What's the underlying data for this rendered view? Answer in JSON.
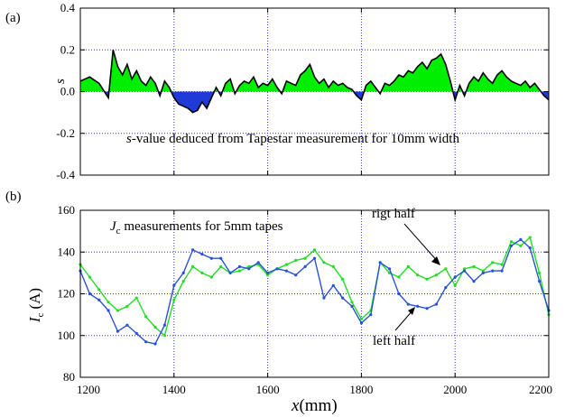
{
  "panel_labels": {
    "a": "(a)",
    "b": "(b)"
  },
  "x_ticks": [
    1200,
    1400,
    1600,
    1800,
    2000,
    2200
  ],
  "x_label": {
    "italic": "x",
    "unit": "(mm)"
  },
  "colors": {
    "axes": "#000000",
    "grid": "#3333cc",
    "pos_fill": "#00ee00",
    "neg_fill": "#1f3ad6",
    "right_half": "#22dd22",
    "left_half": "#2a52d8"
  },
  "chart_data": [
    {
      "type": "area",
      "panel": "(a)",
      "ylabel": "s",
      "ylim": [
        -0.4,
        0.4
      ],
      "xlim": [
        1200,
        2200
      ],
      "y_ticks": [
        "0.4",
        "0.2",
        "0.0",
        "-0.2",
        "-0.4"
      ],
      "grid": true,
      "annotation": {
        "italic": "s",
        "rest": "-value deduced from Tapestar measurement for 10mm width"
      },
      "x": [
        1200,
        1220,
        1240,
        1260,
        1270,
        1280,
        1290,
        1300,
        1310,
        1320,
        1330,
        1340,
        1350,
        1360,
        1370,
        1380,
        1390,
        1400,
        1410,
        1420,
        1430,
        1440,
        1450,
        1460,
        1470,
        1480,
        1490,
        1500,
        1510,
        1520,
        1530,
        1540,
        1550,
        1560,
        1570,
        1580,
        1590,
        1600,
        1610,
        1620,
        1630,
        1640,
        1650,
        1660,
        1670,
        1680,
        1690,
        1700,
        1710,
        1720,
        1730,
        1740,
        1750,
        1760,
        1770,
        1780,
        1790,
        1800,
        1810,
        1820,
        1830,
        1840,
        1850,
        1860,
        1870,
        1880,
        1890,
        1900,
        1910,
        1920,
        1930,
        1940,
        1950,
        1960,
        1970,
        1980,
        1990,
        2000,
        2010,
        2020,
        2030,
        2040,
        2050,
        2060,
        2070,
        2080,
        2090,
        2100,
        2110,
        2120,
        2130,
        2140,
        2150,
        2160,
        2170,
        2180,
        2190,
        2200
      ],
      "values": [
        0.05,
        0.07,
        0.04,
        -0.03,
        0.2,
        0.12,
        0.08,
        0.13,
        0.06,
        0.1,
        0.05,
        0.03,
        0.07,
        0.04,
        -0.02,
        0.05,
        0.02,
        -0.03,
        -0.06,
        -0.07,
        -0.08,
        -0.1,
        -0.09,
        -0.05,
        -0.08,
        -0.03,
        0.02,
        -0.02,
        0.04,
        0.06,
        -0.01,
        0.03,
        0.05,
        0.04,
        0.07,
        0.02,
        0.04,
        0.03,
        0.06,
        0.02,
        -0.01,
        0.05,
        0.04,
        0.03,
        0.08,
        0.1,
        0.13,
        0.07,
        0.04,
        0.06,
        0.02,
        0.05,
        0.03,
        0.04,
        0.02,
        0.01,
        -0.02,
        -0.04,
        0.03,
        0.05,
        0.02,
        -0.01,
        0.04,
        0.03,
        0.05,
        0.08,
        0.07,
        0.1,
        0.09,
        0.12,
        0.14,
        0.11,
        0.15,
        0.16,
        0.18,
        0.13,
        0.05,
        -0.04,
        0.03,
        -0.02,
        0.04,
        0.07,
        0.05,
        0.09,
        0.06,
        0.04,
        0.08,
        0.1,
        0.07,
        0.05,
        0.04,
        0.03,
        0.05,
        0.02,
        0.04,
        0.01,
        -0.02,
        -0.04
      ]
    },
    {
      "type": "line",
      "panel": "(b)",
      "ylabel": {
        "italic": "I",
        "sub": "c",
        "unit": "(A)"
      },
      "ylim": [
        80,
        160
      ],
      "xlim": [
        1200,
        2200
      ],
      "y_ticks": [
        "160",
        "140",
        "120",
        "100",
        "80"
      ],
      "grid": true,
      "annotations": {
        "title": {
          "italic": "J",
          "sub": "c",
          "rest": " measurements for 5mm tapes"
        },
        "right": "rigt half",
        "left": "left half"
      },
      "x": [
        1200,
        1220,
        1240,
        1260,
        1280,
        1300,
        1320,
        1340,
        1360,
        1380,
        1400,
        1420,
        1440,
        1460,
        1480,
        1500,
        1520,
        1540,
        1560,
        1580,
        1600,
        1620,
        1640,
        1660,
        1680,
        1700,
        1720,
        1740,
        1760,
        1780,
        1800,
        1820,
        1840,
        1860,
        1880,
        1900,
        1920,
        1940,
        1960,
        1980,
        2000,
        2020,
        2040,
        2060,
        2080,
        2100,
        2120,
        2140,
        2160,
        2180,
        2200
      ],
      "series": [
        {
          "name": "rigt half",
          "values": [
            134,
            128,
            122,
            116,
            112,
            114,
            118,
            109,
            104,
            100,
            117,
            126,
            133,
            130,
            128,
            133,
            130,
            131,
            133,
            134,
            129,
            132,
            134,
            136,
            137,
            141,
            135,
            133,
            127,
            116,
            108,
            112,
            135,
            130,
            128,
            133,
            129,
            127,
            129,
            132,
            124,
            132,
            133,
            131,
            135,
            134,
            145,
            143,
            147,
            130,
            110
          ]
        },
        {
          "name": "left half",
          "values": [
            131,
            120,
            117,
            112,
            102,
            105,
            101,
            97,
            96,
            105,
            124,
            130,
            141,
            139,
            137,
            137,
            130,
            133,
            132,
            135,
            130,
            132,
            131,
            129,
            133,
            137,
            118,
            124,
            118,
            114,
            106,
            110,
            135,
            132,
            120,
            115,
            114,
            113,
            115,
            123,
            128,
            131,
            126,
            130,
            131,
            131,
            143,
            146,
            142,
            126,
            112
          ]
        }
      ]
    }
  ]
}
